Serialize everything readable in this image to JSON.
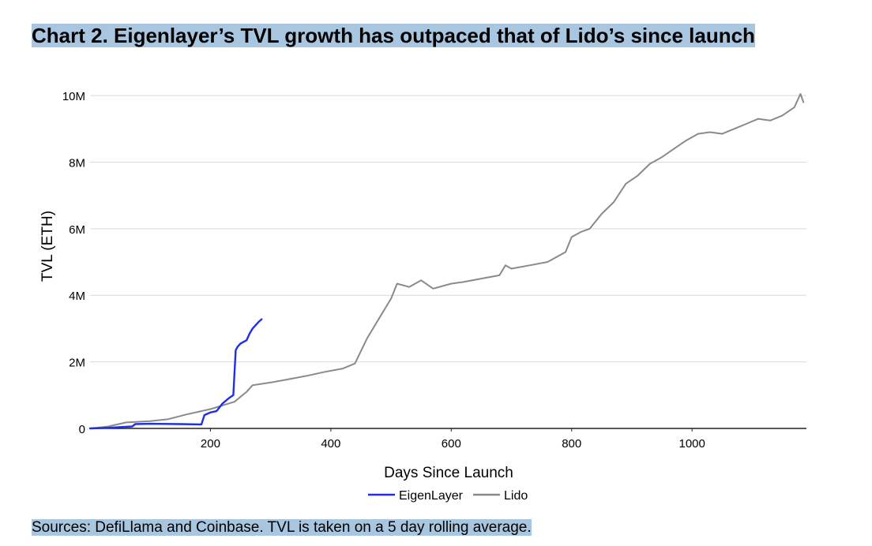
{
  "title": "Chart 2. Eigenlayer’s TVL growth has outpaced that of Lido’s since launch",
  "footer": "Sources: DefiLlama and Coinbase. TVL is taken on a 5 day rolling average.",
  "colors": {
    "eigenlayer": "#1f2ee8",
    "lido": "#8a8a8a",
    "grid": "#d9d9d9",
    "axis": "#222222"
  },
  "chart_data": {
    "type": "line",
    "title": "Chart 2. Eigenlayer’s TVL growth has outpaced that of Lido’s since launch",
    "xlabel": "Days Since Launch",
    "ylabel": "TVL (ETH)",
    "xlim": [
      0,
      1190
    ],
    "ylim": [
      0,
      10500000
    ],
    "xticks": [
      200,
      400,
      600,
      800,
      1000
    ],
    "xtick_labels": [
      "200",
      "400",
      "600",
      "800",
      "1000"
    ],
    "yticks": [
      0,
      2000000,
      4000000,
      6000000,
      8000000,
      10000000
    ],
    "ytick_labels": [
      "0",
      "2M",
      "4M",
      "6M",
      "8M",
      "10M"
    ],
    "grid": true,
    "legend_position": "bottom-center",
    "series": [
      {
        "name": "EigenLayer",
        "x": [
          0,
          30,
          70,
          75,
          100,
          150,
          185,
          190,
          200,
          210,
          220,
          230,
          238,
          242,
          245,
          250,
          260,
          265,
          270,
          275,
          280,
          285
        ],
        "y": [
          0,
          20000,
          60000,
          130000,
          140000,
          130000,
          120000,
          400000,
          480000,
          520000,
          750000,
          900000,
          1000000,
          2350000,
          2450000,
          2550000,
          2650000,
          2850000,
          3000000,
          3100000,
          3200000,
          3280000
        ]
      },
      {
        "name": "Lido",
        "x": [
          0,
          30,
          60,
          100,
          130,
          160,
          200,
          240,
          260,
          270,
          300,
          330,
          360,
          390,
          420,
          440,
          460,
          480,
          500,
          510,
          530,
          550,
          570,
          600,
          620,
          650,
          680,
          690,
          700,
          730,
          760,
          790,
          800,
          815,
          830,
          850,
          870,
          890,
          910,
          930,
          950,
          970,
          990,
          1010,
          1030,
          1050,
          1070,
          1090,
          1110,
          1130,
          1150,
          1170,
          1180,
          1185
        ],
        "y": [
          0,
          60000,
          180000,
          220000,
          280000,
          420000,
          580000,
          800000,
          1100000,
          1300000,
          1380000,
          1480000,
          1580000,
          1700000,
          1800000,
          1950000,
          2700000,
          3300000,
          3900000,
          4350000,
          4250000,
          4450000,
          4200000,
          4350000,
          4400000,
          4500000,
          4600000,
          4900000,
          4800000,
          4900000,
          5000000,
          5300000,
          5750000,
          5900000,
          6000000,
          6450000,
          6800000,
          7350000,
          7600000,
          7950000,
          8150000,
          8400000,
          8650000,
          8850000,
          8900000,
          8850000,
          9000000,
          9150000,
          9300000,
          9250000,
          9400000,
          9650000,
          10050000,
          9800000
        ]
      }
    ]
  }
}
